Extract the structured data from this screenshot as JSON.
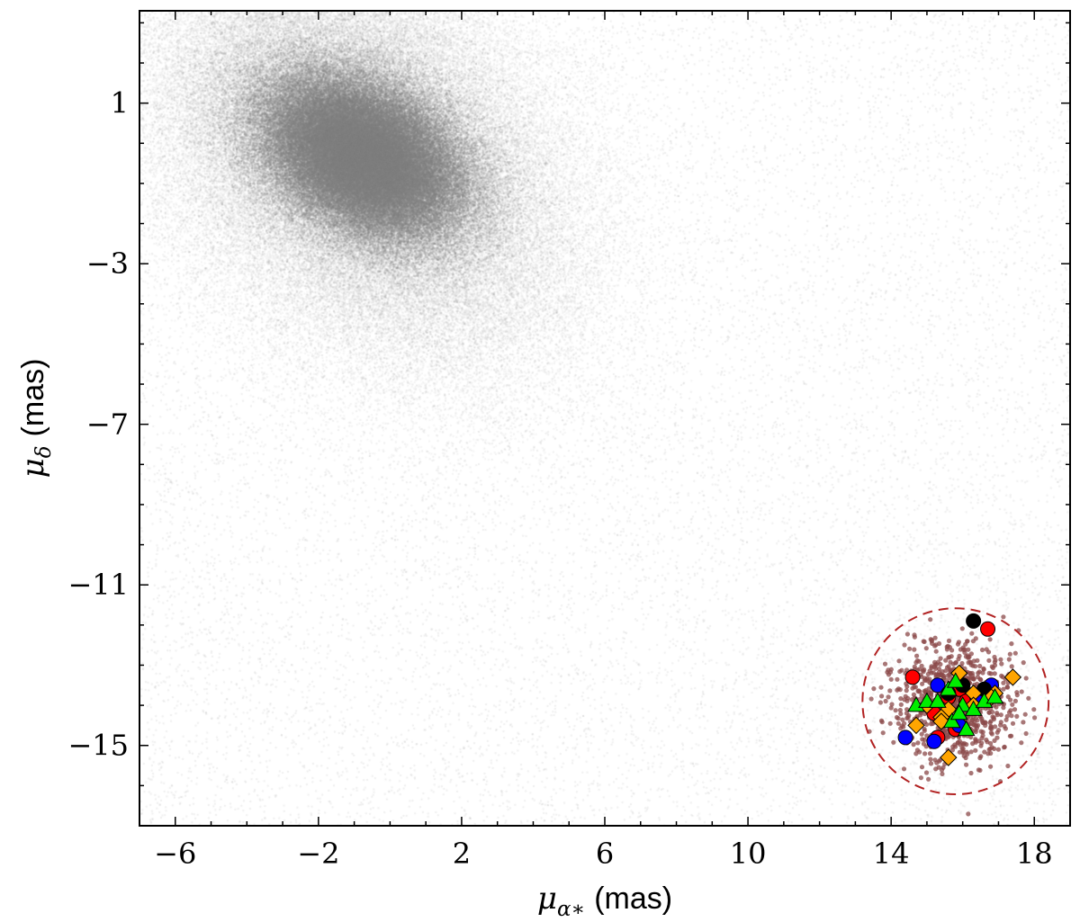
{
  "chart_data": {
    "type": "scatter",
    "title": "",
    "xlabel": {
      "symbol": "μ",
      "sub": "α∗",
      "unit": "(mas)"
    },
    "ylabel": {
      "symbol": "μ",
      "sub": "δ",
      "unit": "(mas)"
    },
    "xlim": [
      -7,
      19
    ],
    "ylim": [
      -17,
      3.3
    ],
    "xticks": [
      -6,
      -2,
      2,
      6,
      10,
      14,
      18
    ],
    "xtick_labels": [
      "−6",
      "−2",
      "2",
      "6",
      "10",
      "14",
      "18"
    ],
    "yticks": [
      1,
      -3,
      -7,
      -11,
      -15
    ],
    "ytick_labels": [
      "1",
      "−3",
      "−7",
      "−11",
      "−15"
    ],
    "grid": false,
    "field_distribution": {
      "color": "#7f7f7f",
      "core_center": [
        -0.8,
        -0.3
      ],
      "core_sigma": [
        1.4,
        1.0
      ],
      "halo_sigma": [
        3.0,
        2.6
      ]
    },
    "selection_circle": {
      "center": [
        15.8,
        -13.9
      ],
      "radius": 2.6,
      "color": "#b22222",
      "style": "dashed"
    },
    "cluster_members": {
      "color": "#8b4a4a",
      "center": [
        15.8,
        -13.9
      ],
      "spread": [
        0.85,
        0.75
      ]
    },
    "series": [
      {
        "marker": "circle",
        "color": "#ff0000",
        "points": [
          [
            16.7,
            -12.1
          ],
          [
            14.6,
            -13.3
          ],
          [
            15.9,
            -13.6
          ],
          [
            16.1,
            -13.9
          ],
          [
            15.8,
            -14.6
          ],
          [
            15.3,
            -14.8
          ],
          [
            15.2,
            -14.2
          ],
          [
            15.6,
            -13.8
          ]
        ]
      },
      {
        "marker": "circle",
        "color": "#0000ff",
        "points": [
          [
            14.4,
            -14.8
          ],
          [
            15.3,
            -13.5
          ],
          [
            16.8,
            -13.5
          ],
          [
            15.2,
            -14.9
          ],
          [
            15.9,
            -14.5
          ],
          [
            16.4,
            -13.8
          ]
        ]
      },
      {
        "marker": "circle",
        "color": "#000000",
        "points": [
          [
            16.3,
            -11.9
          ],
          [
            16.6,
            -13.6
          ],
          [
            16.0,
            -13.5
          ],
          [
            15.6,
            -13.7
          ]
        ]
      },
      {
        "marker": "diamond",
        "color": "#ffa500",
        "points": [
          [
            15.9,
            -13.2
          ],
          [
            17.4,
            -13.3
          ],
          [
            16.3,
            -13.7
          ],
          [
            16.9,
            -13.7
          ],
          [
            16.3,
            -14.0
          ],
          [
            15.6,
            -14.1
          ],
          [
            15.4,
            -14.3
          ],
          [
            15.0,
            -14.0
          ],
          [
            14.7,
            -14.5
          ],
          [
            15.6,
            -15.3
          ],
          [
            16.8,
            -13.8
          ],
          [
            15.4,
            -14.4
          ]
        ]
      },
      {
        "marker": "triangle",
        "color": "#00ee00",
        "points": [
          [
            14.7,
            -14.0
          ],
          [
            15.0,
            -13.9
          ],
          [
            15.3,
            -13.9
          ],
          [
            15.6,
            -13.6
          ],
          [
            15.8,
            -13.4
          ],
          [
            16.0,
            -14.0
          ],
          [
            15.7,
            -14.4
          ],
          [
            15.9,
            -14.2
          ],
          [
            16.1,
            -14.6
          ],
          [
            16.3,
            -14.1
          ],
          [
            16.6,
            -13.9
          ],
          [
            16.9,
            -13.8
          ]
        ]
      }
    ]
  }
}
